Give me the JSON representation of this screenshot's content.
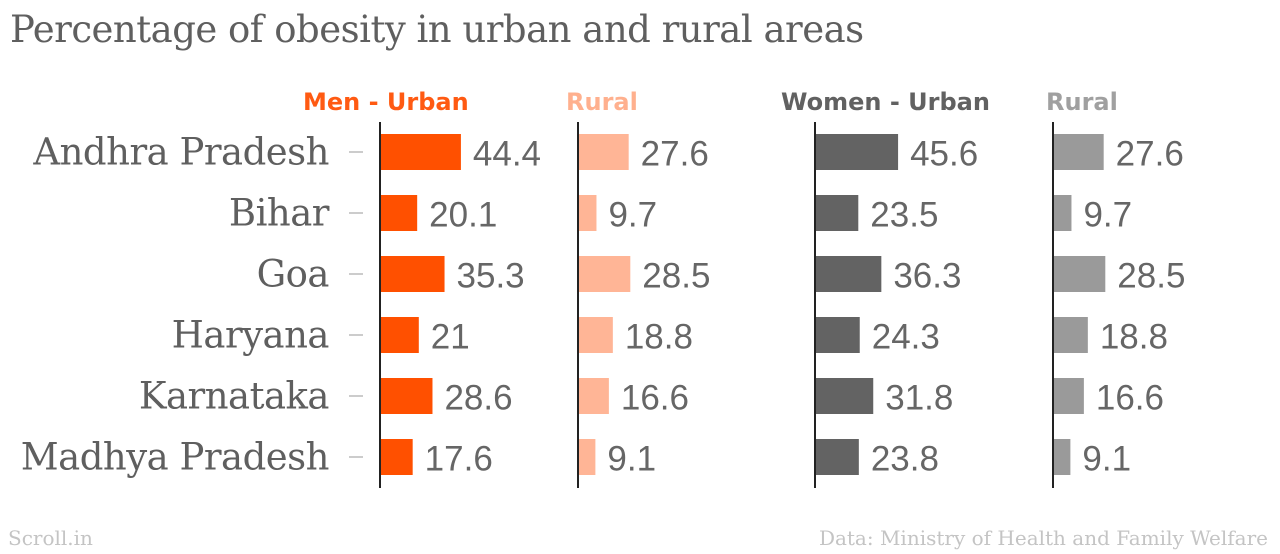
{
  "title": "Percentage of obesity in urban and rural areas",
  "footer": {
    "source_brand": "Scroll.in",
    "source_note": "Data: Ministry of Health and Family Welfare"
  },
  "chart_data": {
    "type": "bar",
    "orientation": "horizontal",
    "title": "Percentage of obesity in urban and rural areas",
    "categories": [
      "Andhra Pradesh",
      "Bihar",
      "Goa",
      "Haryana",
      "Karnataka",
      "Madhya Pradesh"
    ],
    "series": [
      {
        "name": "Men - Urban",
        "values": [
          44.4,
          20.1,
          35.3,
          21,
          28.6,
          17.6
        ],
        "color": "#ff5000",
        "header_color": "#ff5a12"
      },
      {
        "name": "Rural",
        "values": [
          27.6,
          9.7,
          28.5,
          18.8,
          16.6,
          9.1
        ],
        "color": "#ffb596",
        "header_color": "#ffb08e"
      },
      {
        "name": "Women - Urban",
        "values": [
          45.6,
          23.5,
          36.3,
          24.3,
          31.8,
          23.8
        ],
        "color": "#636363",
        "header_color": "#616161"
      },
      {
        "name": "Rural",
        "values": [
          27.6,
          9.7,
          28.5,
          18.8,
          16.6,
          9.1
        ],
        "color": "#9a9a9a",
        "header_color": "#a0a0a0"
      }
    ],
    "grid": false,
    "legend": "column headers above each panel",
    "colors": {
      "title": "#5f5f5f",
      "label": "#5f5f5f",
      "value_label": "#666666",
      "axis": "#222222",
      "footer": "#c4c4c4"
    }
  }
}
